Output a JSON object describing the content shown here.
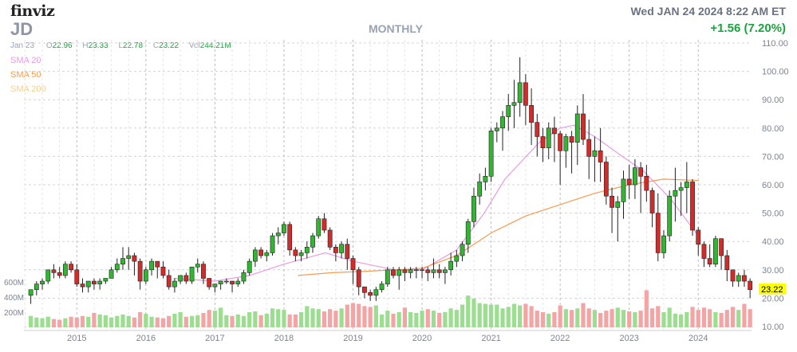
{
  "header": {
    "logo": "finviz",
    "ticker": "JD",
    "period": "MONTHLY",
    "datetime": "Wed JAN 24 2024 8:22 AM ET",
    "change": "+1.56 (7.20%)",
    "ohlc": {
      "date": "Jan 23",
      "open_label": "O",
      "open": "22.96",
      "high_label": "H",
      "high": "23.33",
      "low_label": "L",
      "low": "22.78",
      "close_label": "C",
      "close": "23.22",
      "vol_label": "Vol",
      "volume": "244.21M"
    },
    "sma": [
      {
        "label": "SMA 20",
        "color": "#e79ce4"
      },
      {
        "label": "SMA 50",
        "color": "#f59b52"
      },
      {
        "label": "SMA 200",
        "color": "#f6cf92"
      }
    ]
  },
  "colors": {
    "up": "#2fb82f",
    "down": "#d32a2a",
    "vol_up": "#9bde90",
    "vol_down": "#f3a4a4",
    "grid": "#d4d4d4",
    "label": "#7c8392",
    "price_tag_bg": "#ffff00"
  },
  "chart_data": {
    "type": "candlestick",
    "title": "JD",
    "xlabel": "",
    "ylabel": "",
    "ylim": [
      10,
      110
    ],
    "y_ticks": [
      "110.00",
      "100.00",
      "90.00",
      "80.00",
      "70.00",
      "60.00",
      "50.00",
      "40.00",
      "30.00",
      "20.00",
      "10.00"
    ],
    "x_ticks": [
      "2015",
      "2016",
      "2017",
      "2018",
      "2019",
      "2020",
      "2021",
      "2022",
      "2023",
      "2024"
    ],
    "volume_ticks": [
      "600M",
      "400M",
      "200M"
    ],
    "last_price": "23.22",
    "start": "2014-05",
    "ohlc": [
      [
        21,
        23,
        18,
        23
      ],
      [
        23,
        26,
        21,
        25
      ],
      [
        25,
        27,
        23,
        26
      ],
      [
        26,
        30,
        25,
        30
      ],
      [
        30,
        32,
        27,
        29
      ],
      [
        29,
        31,
        27,
        28
      ],
      [
        28,
        33,
        27,
        32
      ],
      [
        32,
        33,
        29,
        30
      ],
      [
        30,
        32,
        24,
        25
      ],
      [
        25,
        27,
        22,
        24
      ],
      [
        24,
        26,
        22,
        26
      ],
      [
        26,
        27,
        23,
        25
      ],
      [
        25,
        27,
        23,
        26
      ],
      [
        26,
        27,
        25,
        27
      ],
      [
        27,
        31,
        27,
        30
      ],
      [
        30,
        34,
        29,
        32
      ],
      [
        32,
        38,
        30,
        34
      ],
      [
        34,
        38,
        30,
        35
      ],
      [
        35,
        36,
        28,
        33
      ],
      [
        33,
        34,
        23,
        26
      ],
      [
        26,
        31,
        25,
        30
      ],
      [
        30,
        34,
        28,
        33
      ],
      [
        33,
        33,
        27,
        31
      ],
      [
        31,
        33,
        27,
        28
      ],
      [
        28,
        30,
        23,
        24
      ],
      [
        24,
        27,
        22,
        26
      ],
      [
        26,
        28,
        25,
        28
      ],
      [
        28,
        29,
        25,
        26
      ],
      [
        26,
        31,
        25,
        31
      ],
      [
        31,
        34,
        29,
        32
      ],
      [
        32,
        33,
        25,
        27
      ],
      [
        27,
        27,
        23,
        24
      ],
      [
        24,
        25,
        22,
        25
      ],
      [
        25,
        26,
        23,
        26
      ],
      [
        26,
        27,
        25,
        26
      ],
      [
        26,
        26,
        22,
        25
      ],
      [
        25,
        27,
        24,
        26
      ],
      [
        26,
        30,
        25,
        29
      ],
      [
        29,
        34,
        28,
        33
      ],
      [
        33,
        38,
        31,
        37
      ],
      [
        37,
        38,
        34,
        35
      ],
      [
        35,
        37,
        33,
        36
      ],
      [
        36,
        43,
        35,
        42
      ],
      [
        42,
        45,
        39,
        43
      ],
      [
        43,
        47,
        42,
        46
      ],
      [
        46,
        47,
        35,
        37
      ],
      [
        37,
        38,
        33,
        35
      ],
      [
        35,
        37,
        33,
        36
      ],
      [
        36,
        40,
        34,
        38
      ],
      [
        38,
        43,
        36,
        42
      ],
      [
        42,
        49,
        41,
        48
      ],
      [
        48,
        50,
        43,
        44
      ],
      [
        44,
        45,
        37,
        38
      ],
      [
        38,
        39,
        33,
        36
      ],
      [
        36,
        40,
        34,
        39
      ],
      [
        39,
        41,
        30,
        34
      ],
      [
        34,
        35,
        25,
        30
      ],
      [
        30,
        31,
        21,
        24
      ],
      [
        24,
        24,
        20,
        22
      ],
      [
        22,
        23,
        19,
        21
      ],
      [
        21,
        24,
        19,
        23
      ],
      [
        23,
        26,
        22,
        25
      ],
      [
        25,
        31,
        24,
        30
      ],
      [
        30,
        31,
        27,
        28
      ],
      [
        28,
        31,
        23,
        30
      ],
      [
        30,
        31,
        26,
        29
      ],
      [
        29,
        31,
        27,
        30
      ],
      [
        30,
        31,
        27,
        30
      ],
      [
        30,
        31,
        27,
        30
      ],
      [
        30,
        31,
        26,
        29
      ],
      [
        29,
        34,
        27,
        30
      ],
      [
        30,
        32,
        27,
        29
      ],
      [
        29,
        31,
        25,
        30
      ],
      [
        30,
        36,
        28,
        33
      ],
      [
        33,
        37,
        31,
        35
      ],
      [
        35,
        40,
        33,
        39
      ],
      [
        39,
        48,
        36,
        47
      ],
      [
        47,
        59,
        45,
        56
      ],
      [
        56,
        64,
        53,
        61
      ],
      [
        61,
        66,
        58,
        63
      ],
      [
        63,
        80,
        61,
        79
      ],
      [
        79,
        82,
        75,
        80
      ],
      [
        80,
        86,
        72,
        84
      ],
      [
        84,
        92,
        79,
        88
      ],
      [
        88,
        97,
        80,
        89
      ],
      [
        89,
        105,
        84,
        96
      ],
      [
        96,
        99,
        81,
        88
      ],
      [
        88,
        94,
        74,
        82
      ],
      [
        82,
        85,
        70,
        77
      ],
      [
        77,
        80,
        68,
        73
      ],
      [
        73,
        82,
        69,
        80
      ],
      [
        80,
        84,
        68,
        78
      ],
      [
        78,
        79,
        60,
        72
      ],
      [
        72,
        78,
        66,
        77
      ],
      [
        77,
        79,
        64,
        75
      ],
      [
        75,
        88,
        67,
        85
      ],
      [
        85,
        92,
        74,
        76
      ],
      [
        76,
        83,
        62,
        70
      ],
      [
        70,
        77,
        61,
        72
      ],
      [
        72,
        80,
        61,
        68
      ],
      [
        68,
        70,
        53,
        56
      ],
      [
        56,
        59,
        43,
        52
      ],
      [
        52,
        56,
        40,
        54
      ],
      [
        54,
        65,
        48,
        62
      ],
      [
        62,
        67,
        55,
        60
      ],
      [
        60,
        69,
        55,
        66
      ],
      [
        66,
        68,
        50,
        63
      ],
      [
        63,
        67,
        54,
        58
      ],
      [
        58,
        59,
        45,
        50
      ],
      [
        50,
        57,
        33,
        36
      ],
      [
        36,
        44,
        34,
        42
      ],
      [
        42,
        58,
        40,
        56
      ],
      [
        56,
        66,
        47,
        58
      ],
      [
        58,
        61,
        49,
        59
      ],
      [
        59,
        68,
        50,
        61
      ],
      [
        61,
        62,
        42,
        44
      ],
      [
        44,
        45,
        35,
        39
      ],
      [
        39,
        40,
        31,
        34
      ],
      [
        34,
        39,
        31,
        32
      ],
      [
        32,
        42,
        31,
        41
      ],
      [
        41,
        41,
        30,
        35
      ],
      [
        35,
        37,
        26,
        30
      ],
      [
        30,
        30,
        24,
        26
      ],
      [
        26,
        29,
        24,
        28
      ],
      [
        28,
        30,
        24,
        26
      ],
      [
        26,
        27,
        20,
        23
      ]
    ],
    "volume_m": [
      150,
      130,
      120,
      140,
      110,
      100,
      120,
      140,
      130,
      150,
      140,
      190,
      170,
      160,
      130,
      150,
      170,
      150,
      130,
      200,
      180,
      140,
      130,
      120,
      150,
      180,
      200,
      140,
      150,
      160,
      190,
      230,
      220,
      260,
      160,
      150,
      170,
      150,
      200,
      210,
      160,
      180,
      250,
      240,
      230,
      170,
      170,
      200,
      280,
      250,
      240,
      210,
      240,
      220,
      250,
      300,
      320,
      310,
      280,
      270,
      290,
      170,
      220,
      180,
      200,
      260,
      200,
      190,
      220,
      240,
      220,
      190,
      200,
      250,
      230,
      300,
      420,
      380,
      320,
      310,
      300,
      300,
      250,
      270,
      310,
      290,
      310,
      280,
      220,
      200,
      180,
      200,
      290,
      240,
      230,
      250,
      320,
      250,
      230,
      190,
      220,
      240,
      260,
      230,
      210,
      200,
      220,
      490,
      250,
      280,
      200,
      260,
      180,
      170,
      200,
      270,
      230,
      260,
      240,
      200,
      190,
      230,
      270,
      230,
      310,
      240
    ],
    "sma20": [
      [
        2016.4,
        27
      ],
      [
        2017,
        26
      ],
      [
        2017.5,
        28
      ],
      [
        2018,
        32
      ],
      [
        2018.6,
        36
      ],
      [
        2019,
        33
      ],
      [
        2019.6,
        30
      ],
      [
        2020,
        30
      ],
      [
        2020.5,
        37
      ],
      [
        2020.9,
        50
      ],
      [
        2021.2,
        62
      ],
      [
        2021.7,
        75
      ],
      [
        2022,
        80
      ],
      [
        2022.2,
        81
      ],
      [
        2022.5,
        77
      ],
      [
        2022.9,
        70
      ],
      [
        2023.2,
        65
      ],
      [
        2023.6,
        55
      ],
      [
        2024,
        42
      ]
    ],
    "sma50": [
      [
        2018.2,
        28
      ],
      [
        2018.7,
        29
      ],
      [
        2019.2,
        29.5
      ],
      [
        2019.6,
        30
      ],
      [
        2020,
        30.5
      ],
      [
        2020.5,
        35
      ],
      [
        2021,
        43
      ],
      [
        2021.5,
        49
      ],
      [
        2022,
        53
      ],
      [
        2022.5,
        57
      ],
      [
        2023,
        60
      ],
      [
        2023.5,
        62
      ],
      [
        2024,
        61.5
      ]
    ]
  }
}
